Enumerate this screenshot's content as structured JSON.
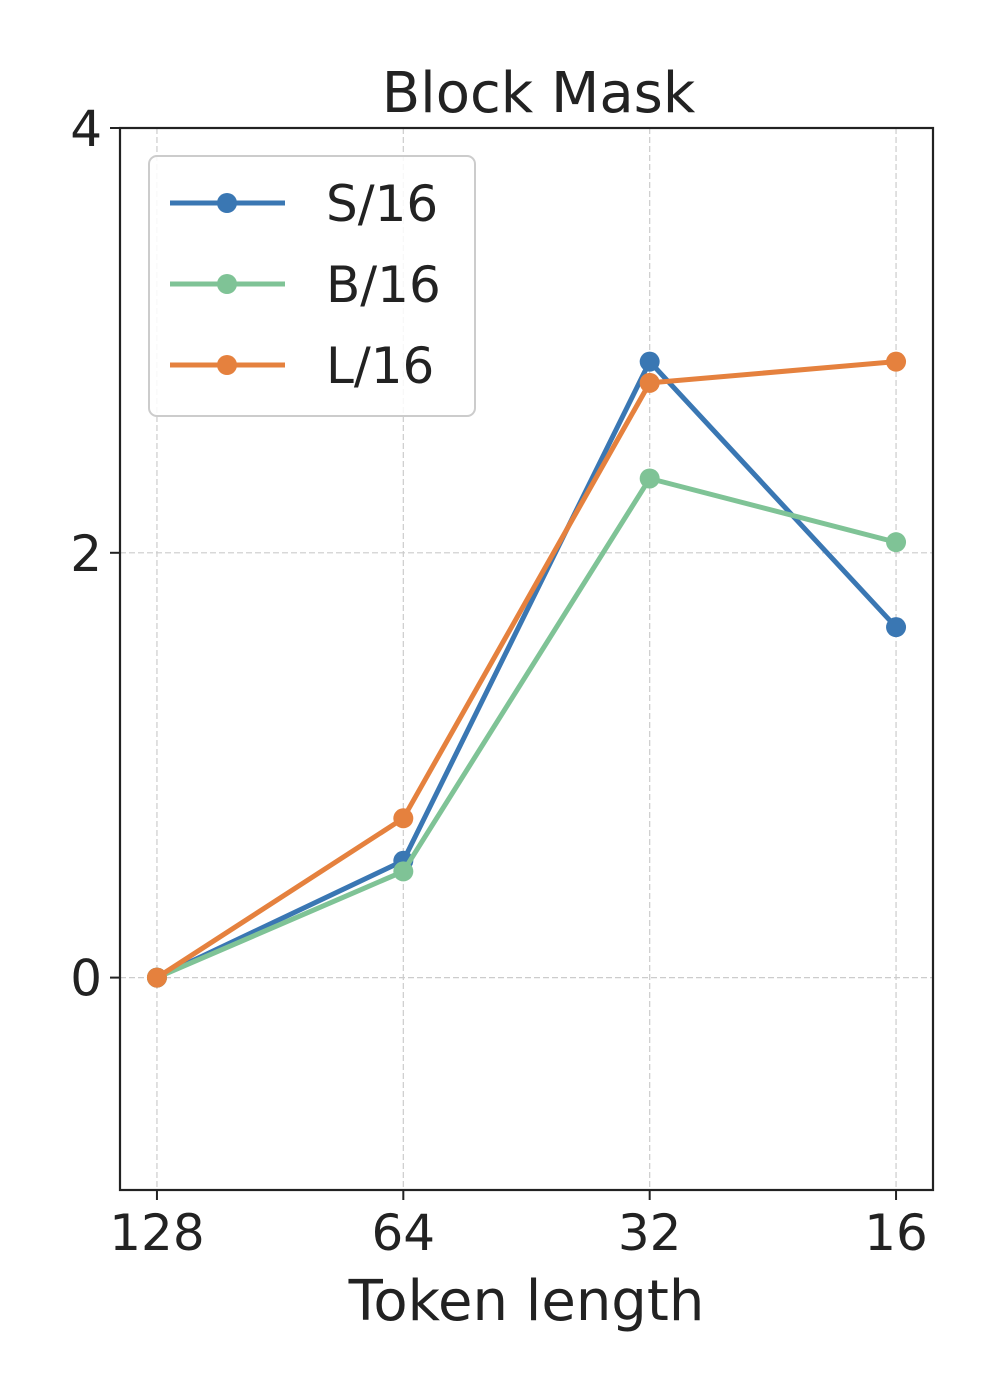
{
  "chart_data": {
    "type": "line",
    "title": "Block Mask",
    "xlabel": "Token length",
    "ylabel": "",
    "x": [
      128,
      64,
      32,
      16
    ],
    "x_tick_labels": [
      "128",
      "64",
      "32",
      "16"
    ],
    "x_scale": "log2-reversed",
    "ylim": [
      -1,
      4
    ],
    "y_ticks": [
      0,
      2,
      4
    ],
    "y_tick_labels": [
      "0",
      "2",
      "4"
    ],
    "grid": true,
    "legend_position": "upper-left",
    "series": [
      {
        "name": "S/16",
        "color": "#3a77b3",
        "values": [
          0.0,
          0.55,
          2.9,
          1.65
        ]
      },
      {
        "name": "B/16",
        "color": "#7fc396",
        "values": [
          0.0,
          0.5,
          2.35,
          2.05
        ]
      },
      {
        "name": "L/16",
        "color": "#e5813e",
        "values": [
          0.0,
          0.75,
          2.8,
          2.9
        ]
      }
    ]
  }
}
